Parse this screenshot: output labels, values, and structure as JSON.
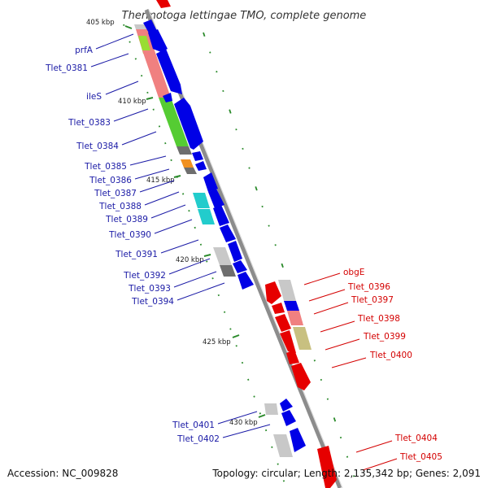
{
  "title": "Thermotoga lettingae TMO, complete genome",
  "accession": "Accession: NC_009828",
  "topology": "Topology: circular; Length: 2,135,342 bp; Genes: 2,091",
  "colors": {
    "backbone": "#8c8c8c",
    "cds_forward": "#0000e6",
    "cds_reverse": "#e60000",
    "label_left": "#1a1aa6",
    "label_right": "#d40000",
    "ticks": "#2a8a2a",
    "orf_salmon": "#f08080",
    "orf_green": "#55cc33",
    "orf_lime": "#99dd33",
    "orf_orange": "#f09020",
    "orf_cyan": "#22cccc",
    "orf_lightgray": "#c8c8c8",
    "orf_darkgray": "#6e6e6e",
    "orf_khaki": "#c8c080"
  },
  "scale_ticks": [
    "405 kbp",
    "410 kbp",
    "415 kbp",
    "420 kbp",
    "425 kbp",
    "430 kbp"
  ],
  "left_labels": [
    "prfA",
    "Tlet_0381",
    "ileS",
    "Tlet_0383",
    "Tlet_0384",
    "Tlet_0385",
    "Tlet_0386",
    "Tlet_0387",
    "Tlet_0388",
    "Tlet_0389",
    "Tlet_0390",
    "Tlet_0391",
    "Tlet_0392",
    "Tlet_0393",
    "Tlet_0394",
    "Tlet_0401",
    "Tlet_0402"
  ],
  "right_labels": [
    "obgE",
    "Tlet_0396",
    "Tlet_0397",
    "Tlet_0398",
    "Tlet_0399",
    "Tlet_0400",
    "Tlet_0404",
    "Tlet_0405"
  ]
}
